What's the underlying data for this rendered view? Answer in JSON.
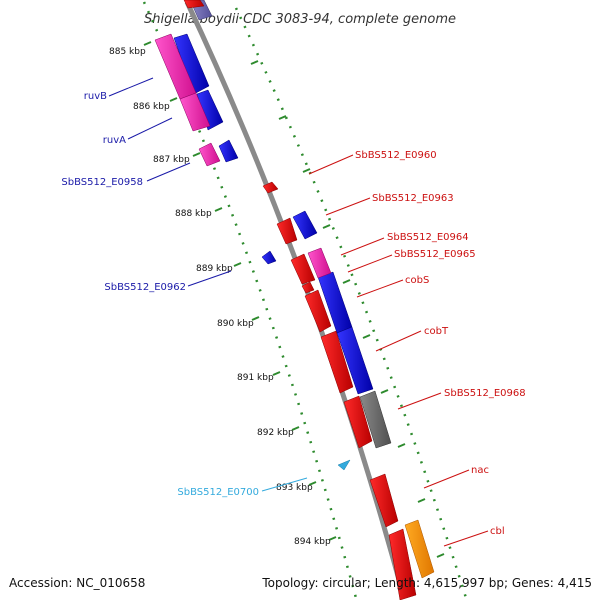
{
  "title": "Shigella boydii CDC 3083-94, complete genome",
  "accession": "Accession: NC_010658",
  "topology": "Topology: circular; Length: 4,615,997 bp; Genes: 4,415",
  "colors": {
    "backbone": "#888888",
    "tick": "#2e8b2e",
    "forward_label": "#1a1aa8",
    "reverse_label": "#cc1111",
    "other_label": "#33aadd"
  },
  "ticks": [
    "885 kbp",
    "886 kbp",
    "887 kbp",
    "888 kbp",
    "889 kbp",
    "890 kbp",
    "891 kbp",
    "892 kbp",
    "893 kbp",
    "894 kbp"
  ],
  "labels": {
    "left": [
      "ruvB",
      "ruvA",
      "SbBS512_E0958",
      "SbBS512_E0962",
      "SbBS512_E0700"
    ],
    "right": [
      "SbBS512_E0960",
      "SbBS512_E0963",
      "SbBS512_E0964",
      "SbBS512_E0965",
      "cobS",
      "cobT",
      "SbBS512_E0968",
      "nac",
      "cbl"
    ]
  }
}
